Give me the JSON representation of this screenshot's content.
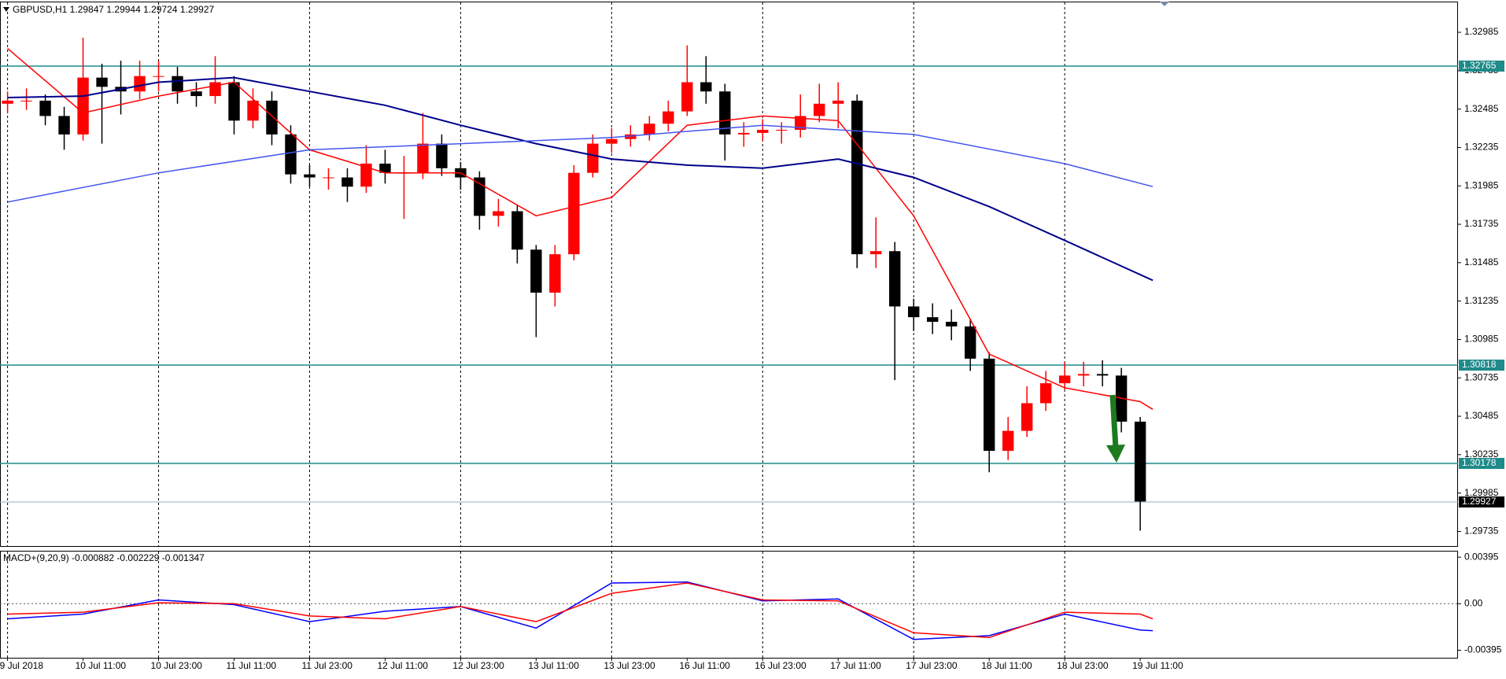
{
  "chart_data": [
    {
      "type": "candlestick",
      "title": "GBPUSD,H1  1.29847 1.29944 1.29724 1.29927",
      "x": [
        0,
        3,
        6,
        9,
        12,
        15,
        18,
        21,
        24,
        27,
        30,
        33,
        36,
        39,
        42,
        45,
        48,
        51,
        54,
        57,
        60,
        63,
        66,
        69,
        72,
        75,
        78,
        81,
        84,
        87,
        90,
        93,
        96,
        99,
        102,
        105,
        108,
        111,
        114,
        117,
        120,
        123,
        126,
        129,
        132,
        135,
        138,
        141,
        144,
        147,
        150,
        153,
        156,
        159,
        162,
        165,
        168,
        171,
        174,
        177,
        180
      ],
      "open": [
        1.3252,
        1.3254,
        1.3254,
        1.3244,
        1.3232,
        1.3269,
        1.3263,
        1.326,
        1.327,
        1.327,
        1.326,
        1.3257,
        1.3266,
        1.3241,
        1.3254,
        1.3232,
        1.3206,
        1.3204,
        1.3204,
        1.3198,
        1.3213,
        1.3207,
        1.3207,
        1.3226,
        1.321,
        1.3204,
        1.3179,
        1.3182,
        1.3157,
        1.3129,
        1.3154,
        1.3207,
        1.3226,
        1.3229,
        1.3232,
        1.3239,
        1.3247,
        1.3266,
        1.326,
        1.3232,
        1.3233,
        1.3235,
        1.3235,
        1.3244,
        1.3252,
        1.3254,
        1.3154,
        1.3156,
        1.312,
        1.3113,
        1.311,
        1.3107,
        1.3086,
        1.3026,
        1.3039,
        1.3057,
        1.307,
        1.3075,
        1.3076,
        1.3075,
        1.3045
      ],
      "high": [
        1.326,
        1.3262,
        1.3258,
        1.325,
        1.3295,
        1.3278,
        1.328,
        1.328,
        1.328,
        1.3276,
        1.3266,
        1.3283,
        1.327,
        1.3262,
        1.326,
        1.3238,
        1.3212,
        1.321,
        1.321,
        1.3225,
        1.3222,
        1.3218,
        1.3246,
        1.3232,
        1.3214,
        1.3208,
        1.319,
        1.3186,
        1.316,
        1.316,
        1.3212,
        1.3232,
        1.3236,
        1.3238,
        1.3244,
        1.3254,
        1.329,
        1.3283,
        1.3265,
        1.324,
        1.3242,
        1.324,
        1.3258,
        1.3265,
        1.3266,
        1.3258,
        1.3178,
        1.3162,
        1.3125,
        1.3122,
        1.3118,
        1.3112,
        1.309,
        1.3048,
        1.3068,
        1.3078,
        1.3084,
        1.3084,
        1.3085,
        1.308,
        1.3048
      ],
      "low": [
        1.3246,
        1.3248,
        1.3238,
        1.3222,
        1.3228,
        1.3226,
        1.3245,
        1.3255,
        1.326,
        1.3252,
        1.325,
        1.3252,
        1.3232,
        1.3236,
        1.3225,
        1.32,
        1.3198,
        1.3196,
        1.3188,
        1.3194,
        1.32,
        1.3177,
        1.3203,
        1.3205,
        1.3196,
        1.317,
        1.3172,
        1.3148,
        1.31,
        1.312,
        1.315,
        1.3204,
        1.322,
        1.3224,
        1.3228,
        1.3234,
        1.3244,
        1.3252,
        1.3215,
        1.3224,
        1.3228,
        1.3226,
        1.323,
        1.324,
        1.3236,
        1.3145,
        1.3145,
        1.3072,
        1.3104,
        1.3102,
        1.3098,
        1.3078,
        1.3012,
        1.302,
        1.3035,
        1.3052,
        1.3066,
        1.3068,
        1.3068,
        1.3038,
        1.2974
      ],
      "close": [
        1.3254,
        1.3254,
        1.3244,
        1.3232,
        1.3269,
        1.3263,
        1.326,
        1.327,
        1.327,
        1.326,
        1.3257,
        1.3266,
        1.3241,
        1.3254,
        1.3232,
        1.3206,
        1.3204,
        1.3204,
        1.3198,
        1.3213,
        1.3207,
        1.3207,
        1.3226,
        1.321,
        1.3204,
        1.3179,
        1.3182,
        1.3157,
        1.3129,
        1.3154,
        1.3207,
        1.3226,
        1.3229,
        1.3232,
        1.3239,
        1.3247,
        1.3266,
        1.326,
        1.3232,
        1.3233,
        1.3235,
        1.3235,
        1.3244,
        1.3252,
        1.3254,
        1.3154,
        1.3156,
        1.312,
        1.3113,
        1.311,
        1.3107,
        1.3086,
        1.3026,
        1.3039,
        1.3057,
        1.307,
        1.3075,
        1.3076,
        1.3075,
        1.3045,
        1.2993
      ],
      "up_color": "#ff0000",
      "down_color": "#000000",
      "series": [
        {
          "color": "#ff0000",
          "x": [
            0,
            12,
            24,
            36,
            48,
            60,
            72,
            84,
            96,
            108,
            120,
            132,
            144,
            156,
            168,
            180,
            182
          ],
          "values": [
            1.3288,
            1.3246,
            1.3257,
            1.3266,
            1.3222,
            1.3207,
            1.3207,
            1.3179,
            1.3191,
            1.3238,
            1.3244,
            1.3241,
            1.3179,
            1.3089,
            1.3067,
            1.3058,
            1.3053
          ]
        },
        {
          "color": "#00008b",
          "x": [
            0,
            12,
            24,
            36,
            48,
            60,
            72,
            84,
            96,
            108,
            120,
            132,
            144,
            156,
            168,
            182
          ],
          "values": [
            1.3256,
            1.3257,
            1.3266,
            1.3269,
            1.326,
            1.3251,
            1.3238,
            1.3226,
            1.3216,
            1.3212,
            1.321,
            1.3216,
            1.3204,
            1.3185,
            1.3163,
            1.3137
          ]
        },
        {
          "color": "#4455ee",
          "x": [
            0,
            24,
            48,
            72,
            96,
            120,
            144,
            168,
            182
          ],
          "values": [
            1.3188,
            1.3207,
            1.3222,
            1.3226,
            1.323,
            1.3238,
            1.3232,
            1.3213,
            1.3198
          ]
        }
      ],
      "levels": [
        {
          "value": 1.32765,
          "color": "#1f8a8a"
        },
        {
          "value": 1.30818,
          "color": "#1f8a8a"
        },
        {
          "value": 1.30178,
          "color": "#1f8a8a"
        }
      ],
      "last_price": 1.29927,
      "last_price_color": "#9aaccc",
      "xlim": [
        -1.2,
        230.5
      ],
      "ylim": [
        1.2964,
        1.3318
      ],
      "yticks": [
        1.32985,
        1.32735,
        1.32485,
        1.32235,
        1.31985,
        1.31735,
        1.31485,
        1.31235,
        1.30985,
        1.30735,
        1.30485,
        1.30235,
        1.29985,
        1.29735
      ]
    },
    {
      "type": "line",
      "title": "MACD+(9,20,9) -0.000882 -0.002229 -0.001347",
      "series": [
        {
          "color": "#0000ff",
          "x": [
            0,
            12,
            24,
            36,
            48,
            60,
            72,
            84,
            96,
            108,
            120,
            132,
            144,
            156,
            168,
            180,
            182
          ],
          "values": [
            -0.00128,
            -0.00088,
            0.00032,
            -8e-05,
            -0.00152,
            -0.00064,
            -0.00024,
            -0.00207,
            0.00176,
            0.00184,
            0.00024,
            0.0004,
            -0.00303,
            -0.00271,
            -0.00088,
            -0.00223,
            -0.00229
          ]
        },
        {
          "color": "#ff0000",
          "x": [
            0,
            12,
            24,
            36,
            48,
            60,
            72,
            84,
            96,
            108,
            120,
            132,
            144,
            156,
            168,
            180,
            182
          ],
          "values": [
            -0.00088,
            -0.00072,
            8e-05,
            0,
            -0.00104,
            -0.00128,
            -0.00024,
            -0.00152,
            0.00088,
            0.00176,
            0.00032,
            0.00024,
            -0.00247,
            -0.00287,
            -0.00072,
            -0.00088,
            -0.00128
          ]
        }
      ],
      "xlim": [
        -1.2,
        230.5
      ],
      "ylim": [
        -0.00459,
        0.00443
      ],
      "yticks": [
        0.00395,
        {
          "value": 0,
          "label": "0.00"
        },
        -0.00395
      ],
      "xticks": [
        {
          "value": 0,
          "label": "9 Jul 2018"
        },
        {
          "value": 12,
          "label": "10 Jul 11:00"
        },
        {
          "value": 24,
          "label": "10 Jul 23:00"
        },
        {
          "value": 36,
          "label": "11 Jul 11:00"
        },
        {
          "value": 48,
          "label": "11 Jul 23:00"
        },
        {
          "value": 60,
          "label": "12 Jul 11:00"
        },
        {
          "value": 72,
          "label": "12 Jul 23:00"
        },
        {
          "value": 84,
          "label": "13 Jul 11:00"
        },
        {
          "value": 96,
          "label": "13 Jul 23:00"
        },
        {
          "value": 108,
          "label": "16 Jul 11:00"
        },
        {
          "value": 120,
          "label": "16 Jul 23:00"
        },
        {
          "value": 132,
          "label": "17 Jul 11:00"
        },
        {
          "value": 144,
          "label": "17 Jul 23:00"
        },
        {
          "value": 156,
          "label": "18 Jul 11:00"
        },
        {
          "value": 168,
          "label": "18 Jul 23:00"
        },
        {
          "value": 180,
          "label": "19 Jul 11:00"
        }
      ]
    }
  ]
}
